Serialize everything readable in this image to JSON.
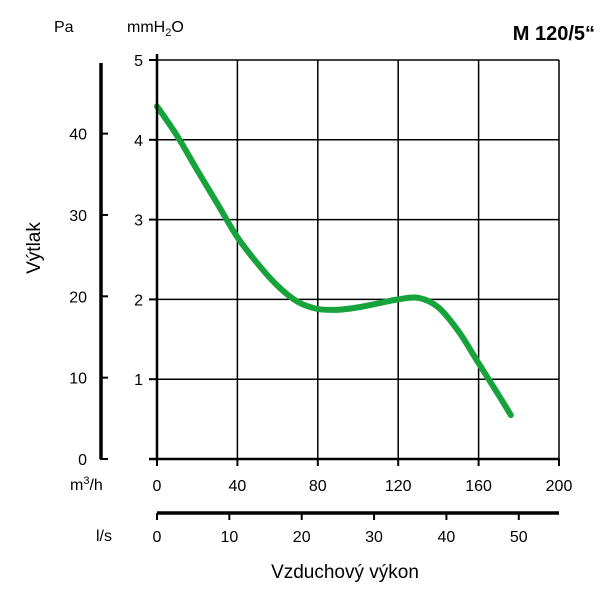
{
  "chart_data": {
    "type": "line",
    "title": "M 120/5“",
    "ylabel": "Výtlak",
    "xlabel": "Vzduchový výkon",
    "units": {
      "pa": "Pa",
      "mmh2o_prefix": "mmH",
      "mmh2o_sub": "2",
      "mmh2o_suffix": "O",
      "m3h_prefix": "m",
      "m3h_sup": "3",
      "m3h_suffix": "/h",
      "ls": "l/s"
    },
    "x_m3h": {
      "lim": [
        0,
        200
      ],
      "ticks": [
        "0",
        "40",
        "80",
        "120",
        "160",
        "200"
      ]
    },
    "x_ls": {
      "lim": [
        0,
        55.56
      ],
      "ticks": [
        "0",
        "10",
        "20",
        "30",
        "40",
        "50"
      ]
    },
    "y_mmh2o": {
      "lim": [
        0,
        5
      ],
      "ticks": [
        "1",
        "2",
        "3",
        "4",
        "5"
      ]
    },
    "y_pa": {
      "lim": [
        0,
        49.05
      ],
      "ticks": [
        "0",
        "10",
        "20",
        "30",
        "40"
      ]
    },
    "grid": true,
    "series": [
      {
        "color": "#17a33b",
        "x": [
          0,
          10,
          20,
          30,
          40,
          50,
          60,
          70,
          80,
          90,
          100,
          110,
          120,
          130,
          140,
          150,
          160,
          170,
          176
        ],
        "y": [
          4.42,
          4.05,
          3.62,
          3.2,
          2.78,
          2.45,
          2.17,
          1.97,
          1.88,
          1.87,
          1.9,
          1.95,
          2.0,
          2.02,
          1.9,
          1.6,
          1.2,
          0.8,
          0.55
        ]
      }
    ]
  }
}
